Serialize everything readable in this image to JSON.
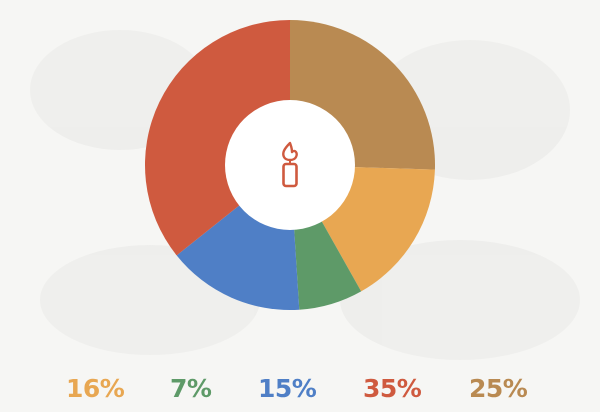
{
  "chart_data": {
    "type": "pie",
    "variant": "donut",
    "slices": [
      {
        "value": 25,
        "label": "25%",
        "color": "#b98a52"
      },
      {
        "value": 16,
        "label": "16%",
        "color": "#e8a752"
      },
      {
        "value": 7,
        "label": "7%",
        "color": "#5e9a68"
      },
      {
        "value": 15,
        "label": "15%",
        "color": "#4f7fc6"
      },
      {
        "value": 35,
        "label": "35%",
        "color": "#cf5a3f"
      }
    ],
    "center_icon": "candle-icon",
    "center_icon_color": "#cf5a3f",
    "label_order": [
      1,
      2,
      3,
      4,
      0
    ]
  }
}
